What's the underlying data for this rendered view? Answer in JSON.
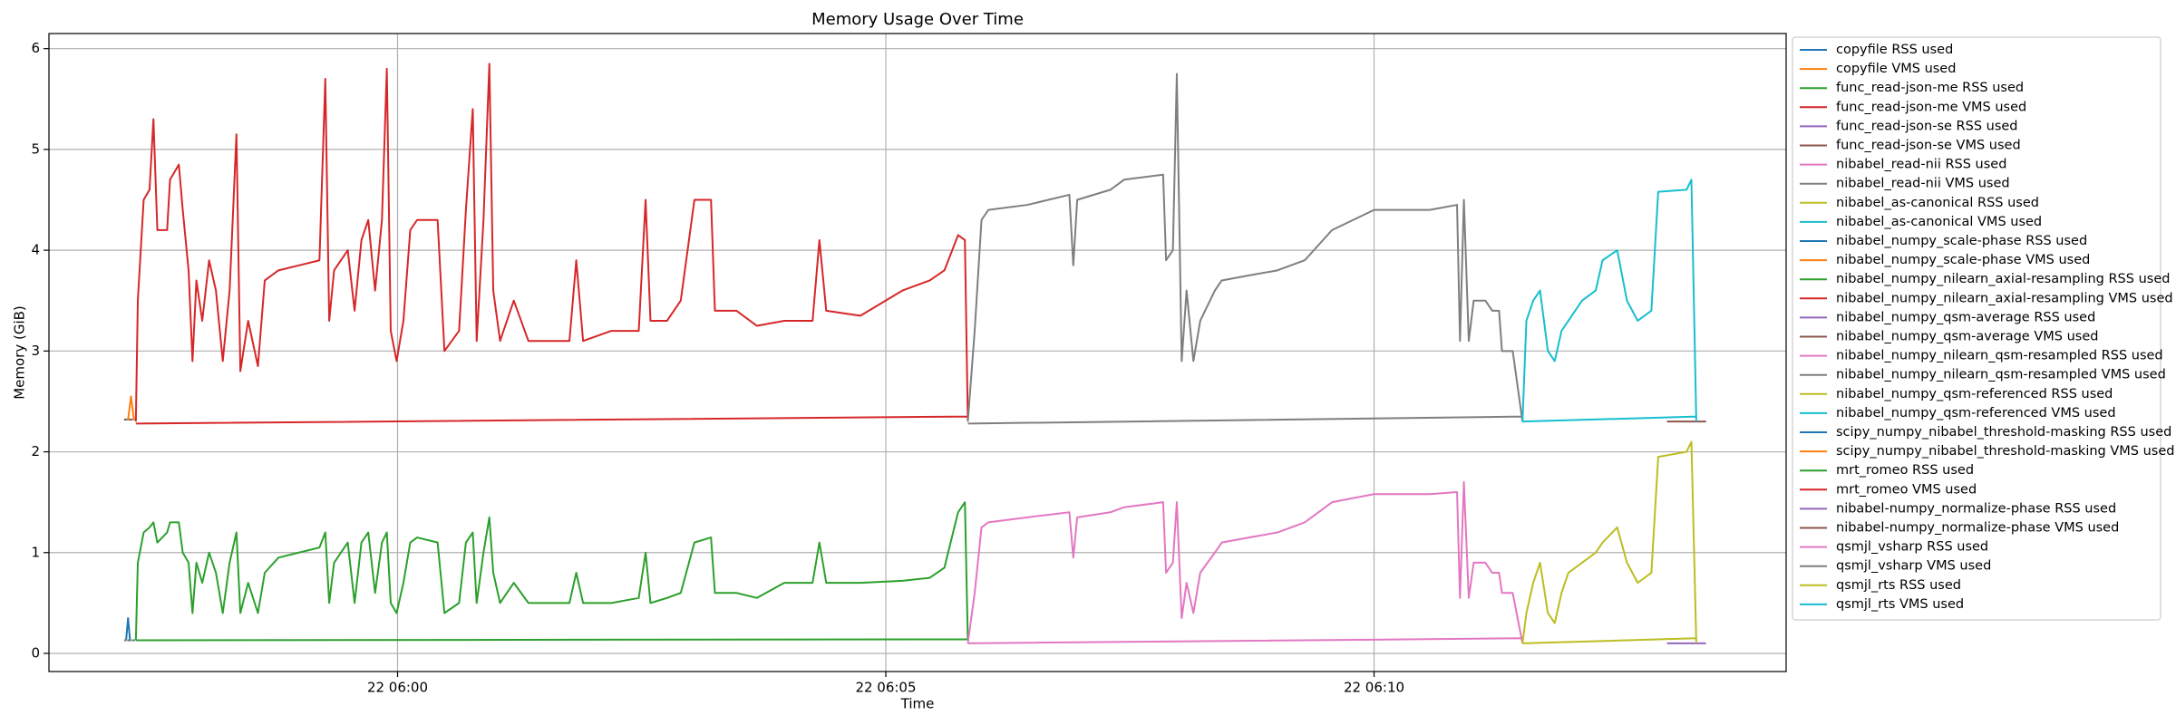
{
  "chart_data": {
    "type": "line",
    "title": "Memory Usage Over Time",
    "x_label": "Time",
    "y_label": "Memory (GiB)",
    "xlim": [
      -3.57,
      14.22
    ],
    "ylim": [
      -0.18,
      6.15
    ],
    "xticks": [
      {
        "value": 0,
        "label": "22 06:00"
      },
      {
        "value": 5,
        "label": "22 06:05"
      },
      {
        "value": 10,
        "label": "22 06:10"
      }
    ],
    "yticks": [
      0,
      1,
      2,
      3,
      4,
      5,
      6
    ],
    "grid": true,
    "legend": "right",
    "series": [
      {
        "name": "copyfile RSS used",
        "color": "#1f77b4",
        "x": [
          -2.78,
          -2.76,
          -2.74
        ],
        "values": [
          0.13,
          0.35,
          0.13
        ]
      },
      {
        "name": "copyfile VMS used",
        "color": "#ff7f0e",
        "x": [
          -2.76,
          -2.73,
          -2.7
        ],
        "values": [
          2.32,
          2.55,
          2.32
        ]
      },
      {
        "name": "func_read-json-me RSS used",
        "color": "#2ca02c",
        "x": [
          -2.8,
          -2.78
        ],
        "values": [
          0.13,
          0.13
        ]
      },
      {
        "name": "func_read-json-me VMS used",
        "color": "#d62728",
        "x": [
          -2.8,
          -2.78
        ],
        "values": [
          2.32,
          2.32
        ]
      },
      {
        "name": "func_read-json-se RSS used",
        "color": "#9467bd",
        "x": [
          -2.79,
          -2.77
        ],
        "values": [
          0.13,
          0.13
        ]
      },
      {
        "name": "func_read-json-se VMS used",
        "color": "#8c564b",
        "x": [
          -2.79,
          -2.77
        ],
        "values": [
          2.32,
          2.32
        ]
      },
      {
        "name": "nibabel_read-nii RSS used",
        "color": "#e377c2",
        "x": [
          -2.78,
          -2.76
        ],
        "values": [
          0.13,
          0.13
        ]
      },
      {
        "name": "nibabel_read-nii VMS used",
        "color": "#7f7f7f",
        "x": [
          -2.78,
          -2.76
        ],
        "values": [
          2.32,
          2.32
        ]
      },
      {
        "name": "nibabel_as-canonical RSS used",
        "color": "#bcbd22",
        "x": [
          -2.77,
          -2.75
        ],
        "values": [
          0.13,
          0.13
        ]
      },
      {
        "name": "nibabel_as-canonical VMS used",
        "color": "#17becf",
        "x": [
          -2.77,
          -2.75
        ],
        "values": [
          2.32,
          2.32
        ]
      },
      {
        "name": "nibabel_numpy_scale-phase RSS used",
        "color": "#1f77b4",
        "x": [
          -2.76,
          -2.74
        ],
        "values": [
          0.13,
          0.13
        ]
      },
      {
        "name": "nibabel_numpy_scale-phase VMS used",
        "color": "#ff7f0e",
        "x": [
          -2.76,
          -2.74
        ],
        "values": [
          2.32,
          2.32
        ]
      },
      {
        "name": "nibabel_numpy_nilearn_axial-resampling RSS used",
        "color": "#2ca02c",
        "x": [
          -2.75,
          -2.73
        ],
        "values": [
          0.13,
          0.13
        ]
      },
      {
        "name": "nibabel_numpy_nilearn_axial-resampling VMS used",
        "color": "#d62728",
        "x": [
          -2.75,
          -2.73
        ],
        "values": [
          2.32,
          2.32
        ]
      },
      {
        "name": "nibabel_numpy_qsm-average RSS used",
        "color": "#9467bd",
        "x": [
          -2.74,
          -2.72
        ],
        "values": [
          0.13,
          0.13
        ]
      },
      {
        "name": "nibabel_numpy_qsm-average VMS used",
        "color": "#8c564b",
        "x": [
          -2.74,
          -2.72
        ],
        "values": [
          2.32,
          2.32
        ]
      },
      {
        "name": "nibabel_numpy_nilearn_qsm-resampled RSS used",
        "color": "#e377c2",
        "x": [
          -2.73,
          -2.71
        ],
        "values": [
          0.13,
          0.13
        ]
      },
      {
        "name": "nibabel_numpy_nilearn_qsm-resampled VMS used",
        "color": "#7f7f7f",
        "x": [
          -2.73,
          -2.71
        ],
        "values": [
          2.32,
          2.32
        ]
      },
      {
        "name": "nibabel_numpy_qsm-referenced RSS used",
        "color": "#bcbd22",
        "x": [
          -2.72,
          -2.7
        ],
        "values": [
          0.13,
          0.13
        ]
      },
      {
        "name": "nibabel_numpy_qsm-referenced VMS used",
        "color": "#17becf",
        "x": [
          -2.72,
          -2.7
        ],
        "values": [
          2.32,
          2.32
        ]
      },
      {
        "name": "scipy_numpy_nibabel_threshold-masking RSS used",
        "color": "#1f77b4",
        "x": [
          -2.71,
          -2.69
        ],
        "values": [
          0.13,
          0.13
        ]
      },
      {
        "name": "scipy_numpy_nibabel_threshold-masking VMS used",
        "color": "#ff7f0e",
        "x": [
          -2.71,
          -2.69
        ],
        "values": [
          2.32,
          2.32
        ]
      },
      {
        "name": "mrt_romeo RSS used",
        "color": "#2ca02c",
        "x": [
          -2.68,
          5.84,
          null,
          -2.68,
          -2.66,
          -2.6,
          -2.54,
          -2.5,
          -2.46,
          -2.36,
          -2.33,
          -2.24,
          -2.2,
          -2.14,
          -2.1,
          -2.06,
          -2.0,
          -1.93,
          -1.86,
          -1.79,
          -1.72,
          -1.65,
          -1.61,
          -1.53,
          -1.43,
          -1.36,
          -1.22,
          -1.01,
          -0.8,
          -0.74,
          -0.7,
          -0.65,
          -0.51,
          -0.44,
          -0.37,
          -0.3,
          -0.23,
          -0.16,
          -0.11,
          -0.07,
          -0.01,
          0.06,
          0.13,
          0.2,
          0.41,
          0.48,
          0.63,
          0.7,
          0.77,
          0.81,
          0.88,
          0.94,
          0.98,
          1.05,
          1.19,
          1.34,
          1.76,
          1.83,
          1.9,
          2.19,
          2.47,
          2.54,
          2.59,
          2.76,
          2.9,
          3.04,
          3.21,
          3.25,
          3.47,
          3.68,
          3.96,
          4.25,
          4.32,
          4.39,
          4.74,
          5.17,
          5.45,
          5.6,
          5.74,
          5.81,
          5.84
        ],
        "values": [
          0.13,
          0.14,
          null,
          0.13,
          0.9,
          1.2,
          1.25,
          1.3,
          1.1,
          1.2,
          1.3,
          1.3,
          1.0,
          0.9,
          0.4,
          0.9,
          0.7,
          1.0,
          0.8,
          0.4,
          0.9,
          1.2,
          0.4,
          0.7,
          0.4,
          0.8,
          0.95,
          1.0,
          1.05,
          1.2,
          0.5,
          0.9,
          1.1,
          0.5,
          1.1,
          1.2,
          0.6,
          1.1,
          1.2,
          0.5,
          0.4,
          0.7,
          1.1,
          1.15,
          1.1,
          0.4,
          0.5,
          1.1,
          1.2,
          0.5,
          1.0,
          1.35,
          0.8,
          0.5,
          0.7,
          0.5,
          0.5,
          0.8,
          0.5,
          0.5,
          0.55,
          1.0,
          0.5,
          0.55,
          0.6,
          1.1,
          1.15,
          0.6,
          0.6,
          0.55,
          0.7,
          0.7,
          1.1,
          0.7,
          0.7,
          0.72,
          0.75,
          0.85,
          1.4,
          1.5,
          0.13
        ]
      },
      {
        "name": "mrt_romeo VMS used",
        "color": "#d62728",
        "x": [
          -2.68,
          5.84,
          null,
          -2.68,
          -2.66,
          -2.6,
          -2.54,
          -2.5,
          -2.46,
          -2.36,
          -2.33,
          -2.24,
          -2.2,
          -2.14,
          -2.1,
          -2.06,
          -2.0,
          -1.93,
          -1.86,
          -1.79,
          -1.72,
          -1.65,
          -1.61,
          -1.53,
          -1.43,
          -1.36,
          -1.22,
          -1.01,
          -0.8,
          -0.74,
          -0.7,
          -0.65,
          -0.51,
          -0.44,
          -0.37,
          -0.3,
          -0.23,
          -0.16,
          -0.11,
          -0.07,
          -0.01,
          0.06,
          0.13,
          0.2,
          0.41,
          0.48,
          0.63,
          0.7,
          0.77,
          0.81,
          0.88,
          0.94,
          0.98,
          1.05,
          1.19,
          1.34,
          1.76,
          1.83,
          1.9,
          2.19,
          2.47,
          2.54,
          2.59,
          2.76,
          2.9,
          3.04,
          3.21,
          3.25,
          3.47,
          3.68,
          3.96,
          4.25,
          4.32,
          4.39,
          4.74,
          5.17,
          5.45,
          5.6,
          5.74,
          5.81,
          5.84
        ],
        "values": [
          2.28,
          2.35,
          null,
          2.3,
          3.5,
          4.5,
          4.6,
          5.3,
          4.2,
          4.2,
          4.7,
          4.85,
          4.4,
          3.8,
          2.9,
          3.7,
          3.3,
          3.9,
          3.6,
          2.9,
          3.6,
          5.15,
          2.8,
          3.3,
          2.85,
          3.7,
          3.8,
          3.85,
          3.9,
          5.7,
          3.3,
          3.8,
          4.0,
          3.4,
          4.1,
          4.3,
          3.6,
          4.3,
          5.8,
          3.2,
          2.9,
          3.3,
          4.2,
          4.3,
          4.3,
          3.0,
          3.2,
          4.4,
          5.4,
          3.1,
          4.3,
          5.85,
          3.6,
          3.1,
          3.5,
          3.1,
          3.1,
          3.9,
          3.1,
          3.2,
          3.2,
          4.5,
          3.3,
          3.3,
          3.5,
          4.5,
          4.5,
          3.4,
          3.4,
          3.25,
          3.3,
          3.3,
          4.1,
          3.4,
          3.35,
          3.6,
          3.7,
          3.8,
          4.15,
          4.1,
          2.3
        ]
      },
      {
        "name": "nibabel-numpy_normalize-phase RSS used",
        "color": "#9467bd",
        "x": [
          13.0,
          13.4
        ],
        "values": [
          0.1,
          0.1
        ]
      },
      {
        "name": "nibabel-numpy_normalize-phase VMS used",
        "color": "#8c564b",
        "x": [
          13.0,
          13.4
        ],
        "values": [
          2.3,
          2.3
        ]
      },
      {
        "name": "qsmjl_vsharp RSS used",
        "color": "#e377c2",
        "x": [
          5.84,
          11.52,
          null,
          5.84,
          5.91,
          5.98,
          6.05,
          6.45,
          6.88,
          6.92,
          6.96,
          7.3,
          7.44,
          7.84,
          7.87,
          7.94,
          7.98,
          8.03,
          8.08,
          8.15,
          8.22,
          8.37,
          8.44,
          8.72,
          9.01,
          9.29,
          9.57,
          10.0,
          10.57,
          10.85,
          10.88,
          10.92,
          10.97,
          11.02,
          11.14,
          11.21,
          11.28,
          11.31,
          11.42,
          11.52
        ],
        "values": [
          0.1,
          0.15,
          null,
          0.1,
          0.6,
          1.25,
          1.3,
          1.35,
          1.4,
          0.95,
          1.35,
          1.4,
          1.45,
          1.5,
          0.8,
          0.9,
          1.5,
          0.35,
          0.7,
          0.4,
          0.8,
          1.0,
          1.1,
          1.15,
          1.2,
          1.3,
          1.5,
          1.58,
          1.58,
          1.6,
          0.55,
          1.7,
          0.55,
          0.9,
          0.9,
          0.8,
          0.8,
          0.6,
          0.6,
          0.1
        ]
      },
      {
        "name": "qsmjl_vsharp VMS used",
        "color": "#7f7f7f",
        "x": [
          5.84,
          11.52,
          null,
          5.84,
          5.91,
          5.98,
          6.05,
          6.45,
          6.88,
          6.92,
          6.96,
          7.3,
          7.44,
          7.84,
          7.87,
          7.94,
          7.98,
          8.03,
          8.08,
          8.15,
          8.22,
          8.37,
          8.44,
          8.72,
          9.01,
          9.29,
          9.57,
          10.0,
          10.57,
          10.85,
          10.88,
          10.92,
          10.97,
          11.02,
          11.14,
          11.21,
          11.28,
          11.31,
          11.42,
          11.52
        ],
        "values": [
          2.28,
          2.35,
          null,
          2.3,
          3.2,
          4.3,
          4.4,
          4.45,
          4.55,
          3.85,
          4.5,
          4.6,
          4.7,
          4.75,
          3.9,
          4.0,
          5.75,
          2.9,
          3.6,
          2.9,
          3.3,
          3.6,
          3.7,
          3.75,
          3.8,
          3.9,
          4.2,
          4.4,
          4.4,
          4.45,
          3.1,
          4.5,
          3.1,
          3.5,
          3.5,
          3.4,
          3.4,
          3.0,
          3.0,
          2.3
        ]
      },
      {
        "name": "qsmjl_rts RSS used",
        "color": "#bcbd22",
        "x": [
          11.52,
          13.3,
          null,
          11.52,
          11.56,
          11.63,
          11.7,
          11.78,
          11.85,
          11.92,
          11.99,
          12.13,
          12.27,
          12.34,
          12.49,
          12.59,
          12.7,
          12.84,
          12.91,
          13.2,
          13.25,
          13.3
        ],
        "values": [
          0.1,
          0.15,
          null,
          0.1,
          0.4,
          0.7,
          0.9,
          0.4,
          0.3,
          0.6,
          0.8,
          0.9,
          1.0,
          1.1,
          1.25,
          0.9,
          0.7,
          0.8,
          1.95,
          2.0,
          2.1,
          0.1
        ]
      },
      {
        "name": "qsmjl_rts VMS used",
        "color": "#17becf",
        "x": [
          11.52,
          13.3,
          null,
          11.52,
          11.56,
          11.63,
          11.7,
          11.78,
          11.85,
          11.92,
          11.99,
          12.13,
          12.27,
          12.34,
          12.49,
          12.59,
          12.7,
          12.84,
          12.91,
          13.2,
          13.25,
          13.3
        ],
        "values": [
          2.3,
          2.35,
          null,
          2.3,
          3.3,
          3.5,
          3.6,
          3.0,
          2.9,
          3.2,
          3.3,
          3.5,
          3.6,
          3.9,
          4.0,
          3.5,
          3.3,
          3.4,
          4.58,
          4.6,
          4.7,
          2.3
        ]
      }
    ]
  }
}
